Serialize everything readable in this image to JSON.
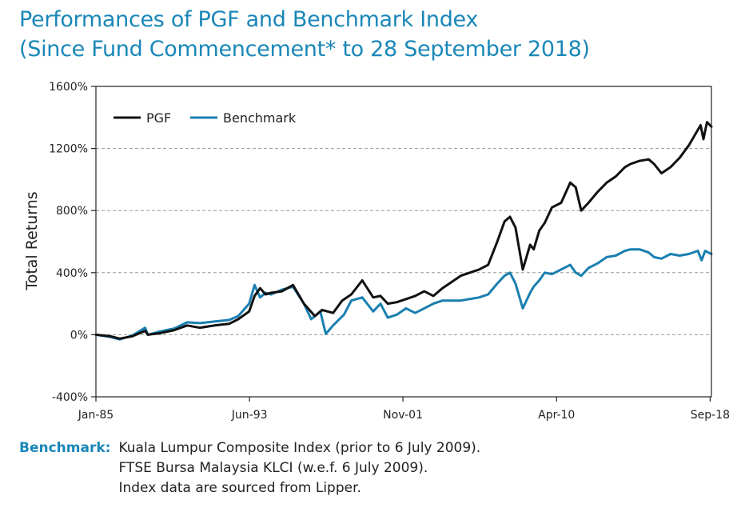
{
  "title": {
    "line1": "Performances of PGF and Benchmark Index",
    "line2": "(Since Fund Commencement* to 28 September 2018)"
  },
  "colors": {
    "title": "#1a87b8",
    "pgf": "#111111",
    "benchmark": "#1a7fb0",
    "grid": "#999999",
    "axis": "#222222"
  },
  "chart_data": {
    "type": "line",
    "title": "Performances of PGF and Benchmark Index (Since Fund Commencement* to 28 September 2018)",
    "xlabel": "",
    "ylabel": "Total Returns",
    "xlim": [
      1985.0,
      2018.74
    ],
    "ylim": [
      -400,
      1600
    ],
    "yticks": [
      {
        "value": -400,
        "label": "-400%"
      },
      {
        "value": 0,
        "label": "0%"
      },
      {
        "value": 400,
        "label": "400%"
      },
      {
        "value": 800,
        "label": "800%"
      },
      {
        "value": 1200,
        "label": "1200%"
      },
      {
        "value": 1600,
        "label": "1600%"
      }
    ],
    "xticks": [
      {
        "value": 1985.0,
        "label": "Jan-85"
      },
      {
        "value": 1993.42,
        "label": "Jun-93"
      },
      {
        "value": 2001.83,
        "label": "Nov-01"
      },
      {
        "value": 2010.25,
        "label": "Apr-10"
      },
      {
        "value": 2018.67,
        "label": "Sep-18"
      }
    ],
    "grid": "horizontal dashed",
    "legend_position": "top-left",
    "series": [
      {
        "name": "PGF",
        "x": [
          1985.0,
          1985.8,
          1986.3,
          1987.0,
          1987.7,
          1987.85,
          1988.5,
          1989.3,
          1990.0,
          1990.7,
          1991.5,
          1992.3,
          1992.8,
          1993.4,
          1993.7,
          1994.0,
          1994.3,
          1994.6,
          1995.2,
          1995.8,
          1996.4,
          1997.0,
          1997.4,
          1998.0,
          1998.5,
          1999.0,
          1999.6,
          2000.2,
          2000.6,
          2001.0,
          2001.5,
          2002.0,
          2002.5,
          2003.0,
          2003.5,
          2004.0,
          2005.0,
          2005.5,
          2006.0,
          2006.5,
          2007.0,
          2007.4,
          2007.7,
          2008.0,
          2008.4,
          2008.8,
          2009.0,
          2009.3,
          2009.6,
          2010.0,
          2010.5,
          2011.0,
          2011.3,
          2011.6,
          2012.0,
          2012.5,
          2013.0,
          2013.5,
          2014.0,
          2014.3,
          2014.8,
          2015.3,
          2015.6,
          2016.0,
          2016.5,
          2017.0,
          2017.5,
          2018.0,
          2018.15,
          2018.3,
          2018.5,
          2018.74
        ],
        "values": [
          0,
          -10,
          -25,
          -10,
          25,
          0,
          10,
          30,
          60,
          45,
          60,
          70,
          100,
          150,
          250,
          300,
          260,
          270,
          280,
          320,
          200,
          120,
          160,
          140,
          220,
          260,
          350,
          240,
          250,
          200,
          210,
          230,
          250,
          280,
          250,
          300,
          380,
          400,
          420,
          450,
          600,
          730,
          760,
          690,
          420,
          580,
          550,
          670,
          720,
          820,
          850,
          980,
          950,
          800,
          850,
          920,
          980,
          1020,
          1080,
          1100,
          1120,
          1130,
          1100,
          1040,
          1080,
          1140,
          1220,
          1320,
          1350,
          1260,
          1370,
          1340
        ]
      },
      {
        "name": "Benchmark",
        "x": [
          1985.0,
          1985.8,
          1986.3,
          1987.0,
          1987.7,
          1987.85,
          1988.5,
          1989.3,
          1990.0,
          1990.7,
          1991.5,
          1992.3,
          1992.8,
          1993.4,
          1993.7,
          1994.0,
          1994.3,
          1994.6,
          1995.2,
          1995.8,
          1996.4,
          1996.8,
          1997.3,
          1997.6,
          1998.0,
          1998.6,
          1999.0,
          1999.6,
          2000.2,
          2000.6,
          2001.0,
          2001.5,
          2002.0,
          2002.5,
          2003.0,
          2003.5,
          2004.0,
          2005.0,
          2006.0,
          2006.5,
          2007.0,
          2007.4,
          2007.7,
          2008.0,
          2008.4,
          2008.8,
          2009.0,
          2009.3,
          2009.6,
          2010.0,
          2010.5,
          2011.0,
          2011.3,
          2011.6,
          2012.0,
          2012.5,
          2013.0,
          2013.5,
          2014.0,
          2014.3,
          2014.8,
          2015.3,
          2015.6,
          2016.0,
          2016.5,
          2017.0,
          2017.5,
          2018.0,
          2018.2,
          2018.4,
          2018.74
        ],
        "values": [
          0,
          -15,
          -30,
          -5,
          45,
          0,
          20,
          40,
          80,
          75,
          85,
          95,
          120,
          200,
          320,
          240,
          270,
          260,
          290,
          310,
          200,
          100,
          150,
          5,
          60,
          130,
          220,
          240,
          150,
          200,
          110,
          130,
          170,
          140,
          170,
          200,
          220,
          220,
          240,
          260,
          330,
          380,
          400,
          330,
          170,
          270,
          310,
          350,
          400,
          390,
          420,
          450,
          400,
          380,
          430,
          460,
          500,
          510,
          540,
          550,
          550,
          530,
          500,
          490,
          520,
          510,
          520,
          540,
          480,
          540,
          520
        ]
      }
    ]
  },
  "note": {
    "label": "Benchmark:",
    "line1": "Kuala Lumpur Composite Index (prior to 6 July 2009).",
    "line2": "FTSE Bursa Malaysia KLCI (w.e.f. 6 July 2009).",
    "line3": "Index data are sourced from Lipper."
  }
}
